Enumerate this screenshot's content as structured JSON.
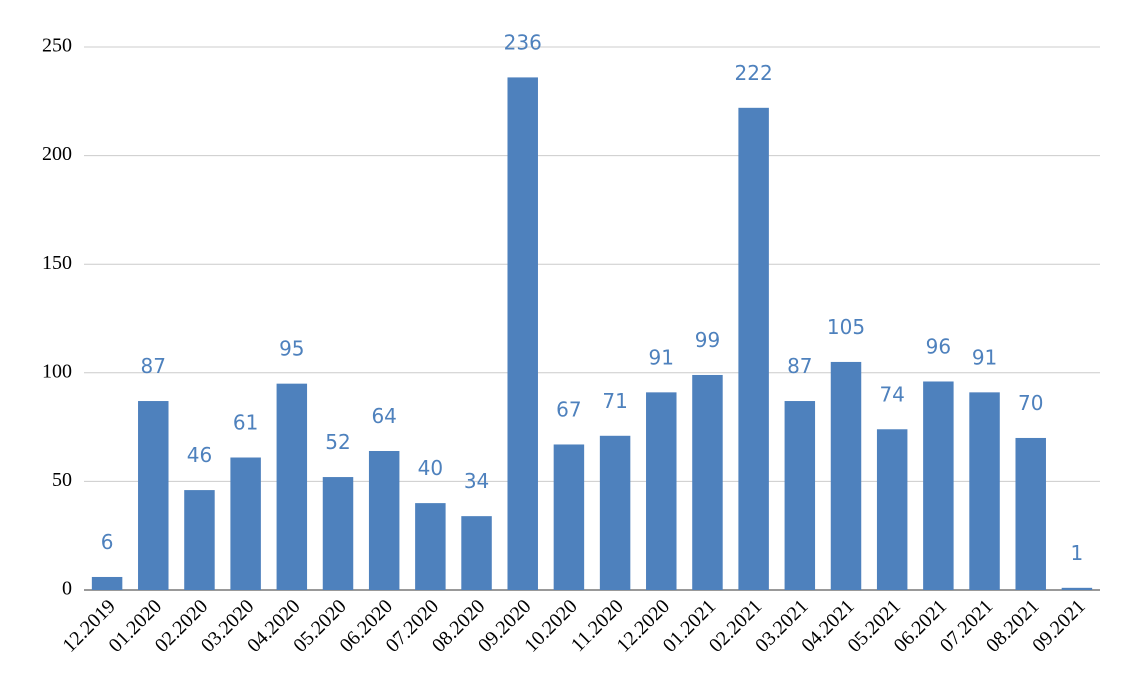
{
  "chart_data": {
    "type": "bar",
    "categories": [
      "12.2019",
      "01.2020",
      "02.2020",
      "03.2020",
      "04.2020",
      "05.2020",
      "06.2020",
      "07.2020",
      "08.2020",
      "09.2020",
      "10.2020",
      "11.2020",
      "12.2020",
      "01.2021",
      "02.2021",
      "03.2021",
      "04.2021",
      "05.2021",
      "06.2021",
      "07.2021",
      "08.2021",
      "09.2021"
    ],
    "values": [
      6,
      87,
      46,
      61,
      95,
      52,
      64,
      40,
      34,
      236,
      67,
      71,
      91,
      99,
      222,
      87,
      105,
      74,
      96,
      91,
      70,
      1
    ],
    "color": "#4e81bd",
    "ylim": [
      0,
      250
    ],
    "yticks": [
      0,
      50,
      100,
      150,
      200,
      250
    ],
    "grid": true
  }
}
